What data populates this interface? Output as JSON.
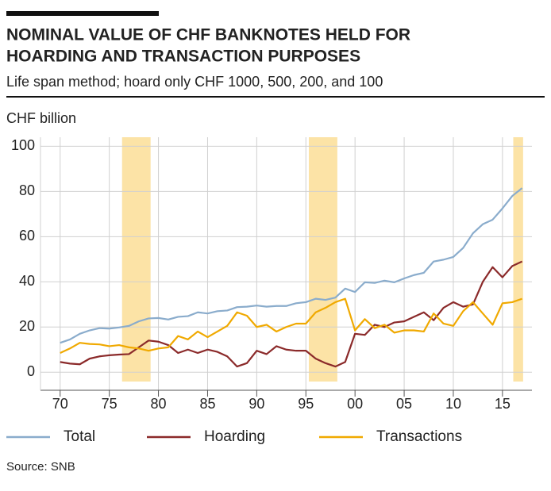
{
  "chart_data": {
    "type": "line",
    "title": [
      "NOMINAL VALUE OF CHF BANKNOTES HELD FOR",
      "HOARDING AND TRANSACTION PURPOSES"
    ],
    "subtitle": "Life span method; hoard only CHF 1000, 500, 200, and 100",
    "y_label": "CHF billion",
    "source": "Source: SNB",
    "x": [
      1970,
      1971,
      1972,
      1973,
      1974,
      1975,
      1976,
      1977,
      1978,
      1979,
      1980,
      1981,
      1982,
      1983,
      1984,
      1985,
      1986,
      1987,
      1988,
      1989,
      1990,
      1991,
      1992,
      1993,
      1994,
      1995,
      1996,
      1997,
      1998,
      1999,
      2000,
      2001,
      2002,
      2003,
      2004,
      2005,
      2006,
      2007,
      2008,
      2009,
      2010,
      2011,
      2012,
      2013,
      2014,
      2015,
      2016,
      2017
    ],
    "series": [
      {
        "name": "Total",
        "color": "#8aaccc",
        "values": [
          13,
          14.5,
          17,
          18.5,
          19.5,
          19.3,
          19.8,
          20.5,
          22.5,
          23.8,
          24,
          23.3,
          24.5,
          24.8,
          26.5,
          26,
          27,
          27.3,
          28.8,
          29,
          29.5,
          29,
          29.3,
          29.3,
          30.5,
          31,
          32.5,
          32,
          33,
          37,
          35.5,
          39.8,
          39.5,
          40.5,
          39.8,
          41.5,
          43,
          44,
          49,
          49.8,
          51,
          55,
          61.5,
          65.5,
          67.5,
          72.5,
          78,
          81.5
        ]
      },
      {
        "name": "Hoarding",
        "color": "#8b2a2a",
        "values": [
          4.5,
          3.8,
          3.5,
          6,
          7,
          7.5,
          7.8,
          8,
          11,
          14,
          13.5,
          12,
          8.5,
          10,
          8.5,
          10,
          9,
          7,
          2.5,
          4,
          9.5,
          8,
          11.5,
          10,
          9.5,
          9.5,
          6,
          4,
          2.5,
          4.5,
          17,
          16.5,
          21,
          20,
          22,
          22.5,
          24.5,
          26.5,
          23,
          28.5,
          31,
          29,
          30,
          40,
          46.5,
          42,
          47,
          49
        ]
      },
      {
        "name": "Transactions",
        "color": "#f0a900",
        "values": [
          8.5,
          10.5,
          13,
          12.5,
          12.3,
          11.5,
          12,
          11,
          10.5,
          9.5,
          10.5,
          11,
          16,
          14.5,
          18,
          15.5,
          18,
          20.5,
          26.5,
          25,
          20,
          21,
          18,
          20,
          21.5,
          21.5,
          26.5,
          28.5,
          31,
          32.5,
          18.5,
          23.5,
          19.5,
          21,
          17.5,
          18.5,
          18.5,
          18,
          26,
          21.5,
          20.5,
          27,
          31,
          26,
          21,
          30.5,
          31,
          32.5
        ]
      }
    ],
    "shaded_periods": [
      [
        1976.3,
        1979.2
      ],
      [
        1995.3,
        1998.2
      ],
      [
        2016.1,
        2017.1
      ]
    ],
    "shade_color": "#fce3a6",
    "xlim": [
      1968,
      2018
    ],
    "xticks": [
      {
        "value": 1970,
        "label": "70"
      },
      {
        "value": 1975,
        "label": "75"
      },
      {
        "value": 1980,
        "label": "80"
      },
      {
        "value": 1985,
        "label": "85"
      },
      {
        "value": 1990,
        "label": "90"
      },
      {
        "value": 1995,
        "label": "95"
      },
      {
        "value": 2000,
        "label": "00"
      },
      {
        "value": 2005,
        "label": "05"
      },
      {
        "value": 2010,
        "label": "10"
      },
      {
        "value": 2015,
        "label": "15"
      }
    ],
    "ylim": [
      -8,
      104
    ],
    "yticks": [
      0,
      20,
      40,
      60,
      80,
      100
    ],
    "grid": true
  }
}
